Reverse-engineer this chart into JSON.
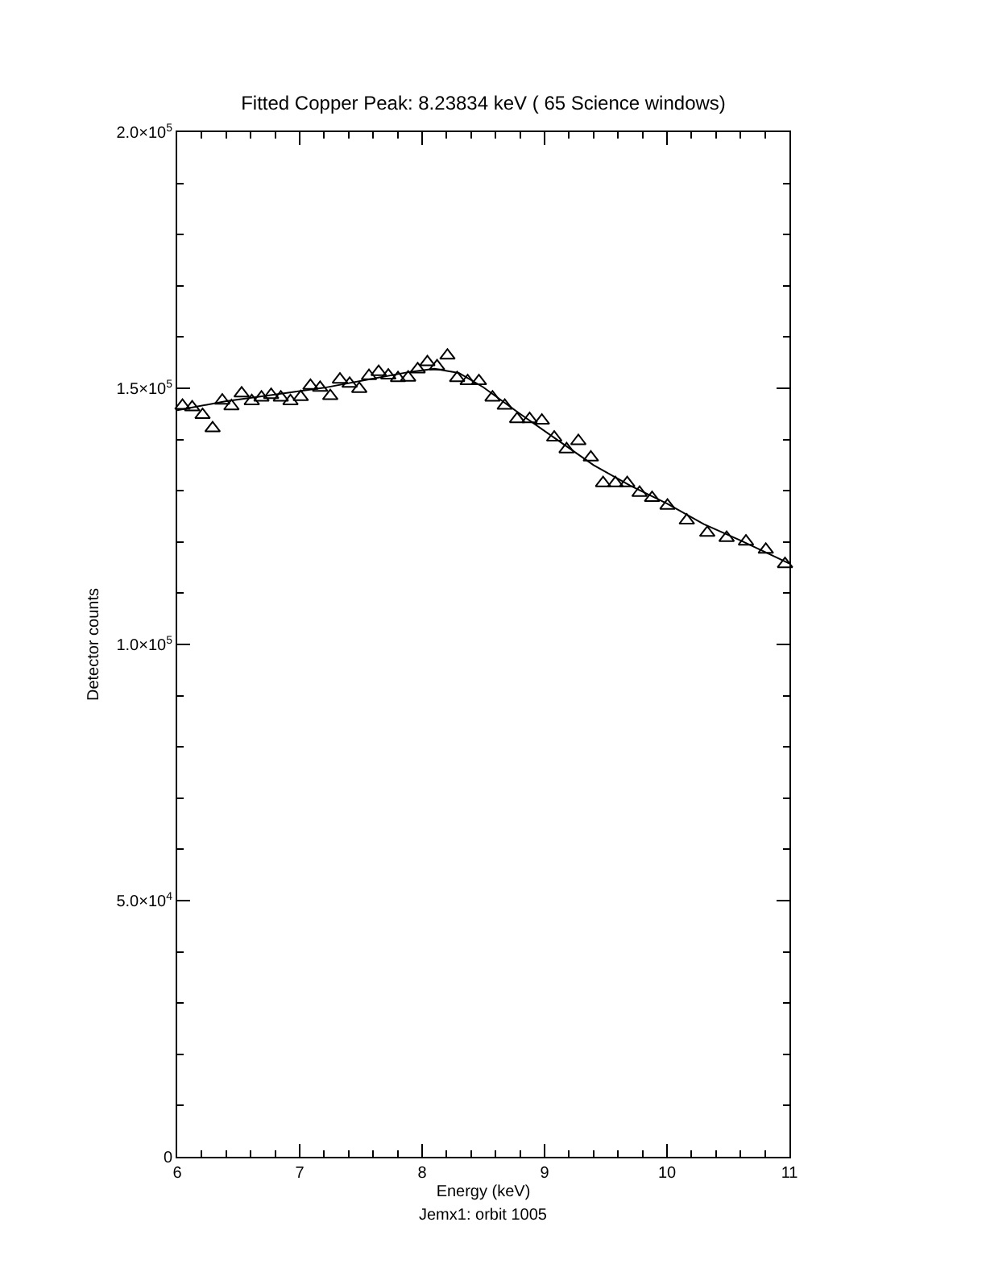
{
  "chart_data": {
    "type": "scatter",
    "title": "Fitted Copper Peak: 8.23834 keV ( 65 Science windows)",
    "xlabel": "Energy (keV)",
    "ylabel": "Detector counts",
    "annotations": [
      "Jemx1: orbit 1005"
    ],
    "xlim": [
      6,
      11
    ],
    "ylim": [
      0,
      200000
    ],
    "xticks": [
      6,
      7,
      8,
      9,
      10,
      11
    ],
    "yticks": [
      {
        "value": 0,
        "label": "0"
      },
      {
        "value": 50000,
        "label": "5.0×10$^{4}$"
      },
      {
        "value": 100000,
        "label": "1.0×10$^{5}$"
      },
      {
        "value": 150000,
        "label": "1.5×10$^{5}$"
      },
      {
        "value": 200000,
        "label": "2.0×10$^{5}$"
      }
    ],
    "series": [
      {
        "marker": "triangle",
        "color": "#000000",
        "x": [
          6.043,
          6.122,
          6.207,
          6.289,
          6.368,
          6.443,
          6.526,
          6.609,
          6.688,
          6.767,
          6.846,
          6.925,
          7.009,
          7.088,
          7.167,
          7.25,
          7.329,
          7.408,
          7.487,
          7.566,
          7.645,
          7.724,
          7.803,
          7.886,
          7.964,
          8.043,
          8.122,
          8.207,
          8.286,
          8.372,
          8.464,
          8.575,
          8.675,
          8.776,
          8.878,
          8.978,
          9.079,
          9.18,
          9.276,
          9.378,
          9.478,
          9.579,
          9.675,
          9.776,
          9.878,
          10.004,
          10.162,
          10.329,
          10.487,
          10.645,
          10.807,
          10.964
        ],
        "values": [
          146600,
          146300,
          144800,
          142200,
          147600,
          146500,
          149000,
          147500,
          148200,
          148700,
          148200,
          147500,
          148300,
          150500,
          150100,
          148500,
          151700,
          150900,
          149900,
          152400,
          153200,
          152500,
          152000,
          152100,
          153700,
          155100,
          154300,
          156400,
          152000,
          151400,
          151400,
          148200,
          146600,
          144000,
          144000,
          143700,
          140400,
          138100,
          139700,
          136500,
          131500,
          131500,
          131500,
          129600,
          128600,
          127100,
          124200,
          121800,
          120800,
          120100,
          118500,
          115700
        ]
      },
      {
        "type": "line",
        "marker": "none",
        "line_style": "solid",
        "color": "#000000",
        "x": [
          6.0,
          6.4,
          6.8,
          7.2,
          7.6,
          7.9,
          8.1,
          8.3,
          8.5,
          8.8,
          9.1,
          9.4,
          9.7,
          10.0,
          10.3,
          10.6,
          11.0
        ],
        "values": [
          145700,
          147500,
          148800,
          150100,
          151900,
          153200,
          153800,
          153000,
          150200,
          145000,
          140000,
          135000,
          131000,
          127500,
          123500,
          120300,
          115800
        ]
      }
    ]
  }
}
